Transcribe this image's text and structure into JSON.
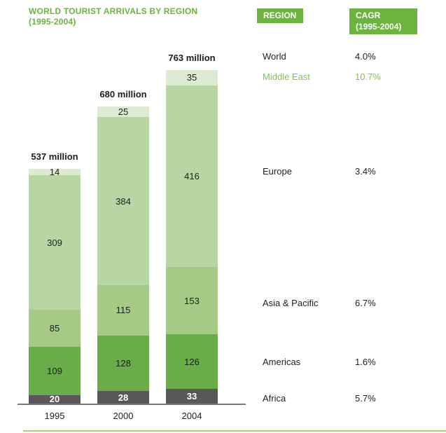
{
  "colors": {
    "accent_green": "#6cb33f",
    "highlight_green": "#80c25a",
    "axis_gray": "#7b7b7b",
    "bottom_rule_green": "#a6d373",
    "text_dark": "#222222",
    "bar_label_dark": "#1d1d1d",
    "white": "#ffffff"
  },
  "title": {
    "line1": "WORLD TOURIST ARRIVALS BY REGION",
    "line2": "(1995-2004)"
  },
  "region_table": {
    "region_header": "REGION",
    "cagr_header_line1": "CAGR",
    "cagr_header_line2": "(1995-2004)",
    "rows": [
      {
        "region": "World",
        "cagr": "4.0%",
        "highlight": false
      },
      {
        "region": "Middle East",
        "cagr": "10.7%",
        "highlight": true
      },
      {
        "region": "Europe",
        "cagr": "3.4%",
        "highlight": false
      },
      {
        "region": "Asia & Pacific",
        "cagr": "6.7%",
        "highlight": false
      },
      {
        "region": "Americas",
        "cagr": "1.6%",
        "highlight": false
      },
      {
        "region": "Africa",
        "cagr": "5.7%",
        "highlight": false
      }
    ]
  },
  "chart_data": {
    "type": "bar",
    "stacked": true,
    "title": "WORLD TOURIST ARRIVALS BY REGION (1995-2004)",
    "unit": "million",
    "categories": [
      "1995",
      "2000",
      "2004"
    ],
    "totals": [
      537,
      680,
      763
    ],
    "total_labels": [
      "537 million",
      "680 million",
      "763 million"
    ],
    "series": [
      {
        "name": "Africa",
        "color": "#58585a",
        "label_color": "#ffffff",
        "bold_label": true,
        "values": [
          20,
          28,
          33
        ]
      },
      {
        "name": "Americas",
        "color": "#69ac48",
        "label_color": "#1d1d1d",
        "bold_label": false,
        "values": [
          109,
          128,
          126
        ]
      },
      {
        "name": "Asia & Pacific",
        "color": "#a4ca86",
        "label_color": "#1d1d1d",
        "bold_label": false,
        "values": [
          85,
          115,
          153
        ]
      },
      {
        "name": "Europe",
        "color": "#b8d6a4",
        "label_color": "#1d1d1d",
        "bold_label": false,
        "values": [
          309,
          384,
          416
        ]
      },
      {
        "name": "Middle East",
        "color": "#dcebd2",
        "label_color": "#1d1d1d",
        "bold_label": false,
        "values": [
          14,
          25,
          35
        ]
      }
    ],
    "ylim": [
      0,
      763
    ],
    "grid": false,
    "legend": "none"
  }
}
